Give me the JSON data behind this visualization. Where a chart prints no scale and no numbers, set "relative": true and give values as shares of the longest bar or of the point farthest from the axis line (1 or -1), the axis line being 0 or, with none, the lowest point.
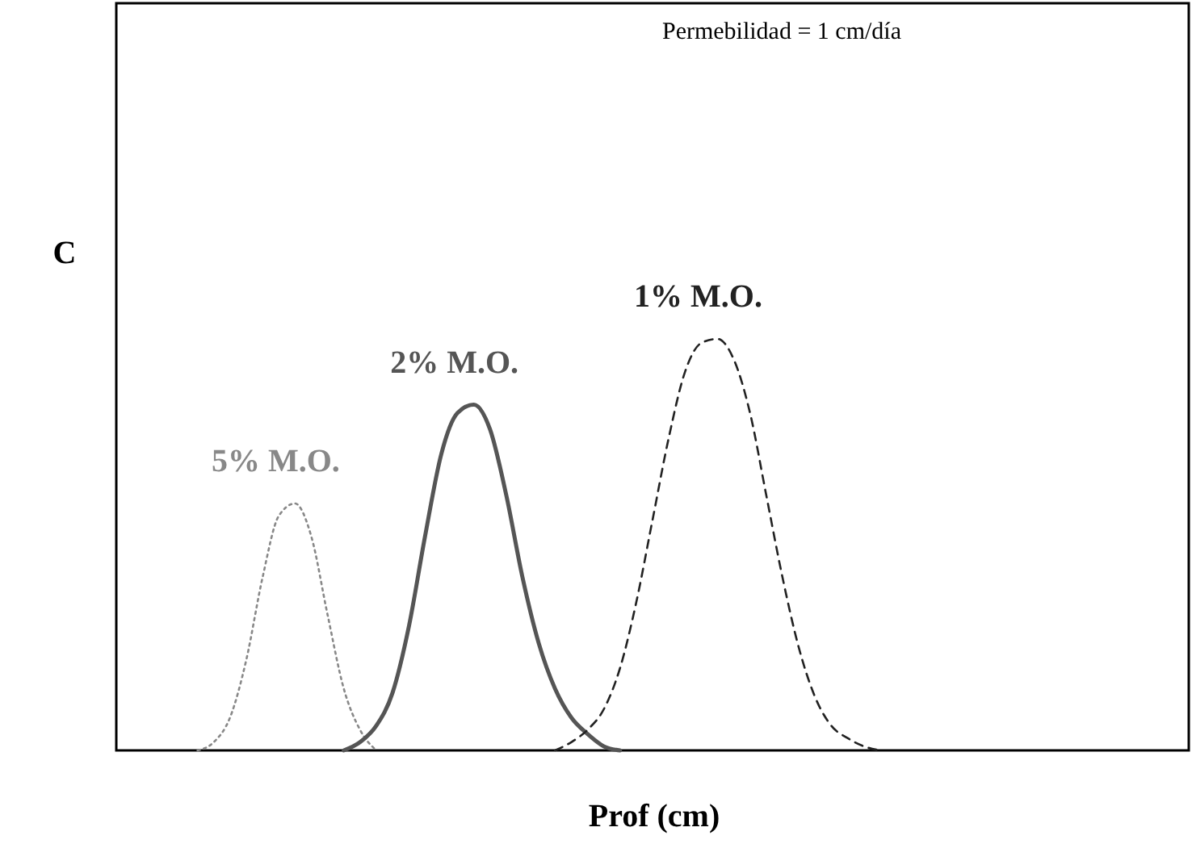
{
  "chart_data": {
    "type": "line",
    "relative": true,
    "xlabel": "Prof (cm)",
    "ylabel": "C",
    "annotations": [
      "Permebilidad = 1 cm/día"
    ],
    "grid": false,
    "marker": "none",
    "categories": [
      null,
      null,
      null,
      null,
      null,
      null,
      null,
      null,
      null,
      null,
      null,
      null,
      null,
      null,
      null,
      null,
      null,
      null,
      null,
      null,
      null,
      null,
      null,
      null,
      null,
      null,
      null,
      null,
      null,
      null,
      null,
      null,
      null,
      null,
      null,
      null,
      null,
      null,
      null,
      null,
      null,
      null,
      null,
      null,
      null,
      null,
      null,
      null,
      null,
      null,
      null,
      null,
      null,
      null,
      null,
      null,
      null,
      null,
      null,
      null,
      null,
      null,
      null,
      null,
      null,
      null,
      null
    ],
    "series": [
      {
        "name": "5% M.O.",
        "color": "#888888",
        "line_style": "dotted",
        "values": [
          null,
          null,
          null,
          null,
          null,
          0,
          0.02,
          0.08,
          0.22,
          0.42,
          0.57,
          0.6,
          0.52,
          0.33,
          0.15,
          0.05,
          0,
          null,
          null,
          null,
          null,
          null,
          null,
          null,
          null,
          null,
          null,
          null,
          null,
          null,
          null,
          null,
          null,
          null,
          null,
          null,
          null,
          null,
          null,
          null,
          null,
          null,
          null,
          null,
          null,
          null,
          null,
          null,
          null,
          null,
          null,
          null,
          null,
          null,
          null,
          null,
          null,
          null,
          null,
          null,
          null,
          null,
          null,
          null,
          null,
          null,
          null
        ]
      },
      {
        "name": "2% M.O.",
        "color": "#555555",
        "line_style": "solid",
        "values": [
          null,
          null,
          null,
          null,
          null,
          null,
          null,
          null,
          null,
          null,
          null,
          null,
          null,
          null,
          0,
          0.02,
          0.06,
          0.14,
          0.3,
          0.52,
          0.72,
          0.82,
          0.84,
          0.78,
          0.62,
          0.42,
          0.26,
          0.15,
          0.08,
          0.04,
          0.01,
          0,
          null,
          null,
          null,
          null,
          null,
          null,
          null,
          null,
          null,
          null,
          null,
          null,
          null,
          null,
          null,
          null,
          null,
          null,
          null,
          null,
          null,
          null,
          null,
          null,
          null,
          null,
          null,
          null,
          null,
          null,
          null,
          null,
          null,
          null,
          null
        ]
      },
      {
        "name": "1% M.O.",
        "color": "#222222",
        "line_style": "dashed",
        "values": [
          null,
          null,
          null,
          null,
          null,
          null,
          null,
          null,
          null,
          null,
          null,
          null,
          null,
          null,
          null,
          null,
          null,
          null,
          null,
          null,
          null,
          null,
          null,
          null,
          null,
          null,
          null,
          0,
          0.02,
          0.05,
          0.1,
          0.2,
          0.36,
          0.56,
          0.76,
          0.92,
          0.99,
          1,
          0.95,
          0.82,
          0.62,
          0.42,
          0.25,
          0.13,
          0.06,
          0.03,
          0.01,
          0,
          null,
          null,
          null,
          null,
          null,
          null,
          null,
          null,
          null,
          null,
          null,
          null,
          null,
          null,
          null,
          null,
          null,
          null,
          null
        ]
      }
    ]
  }
}
